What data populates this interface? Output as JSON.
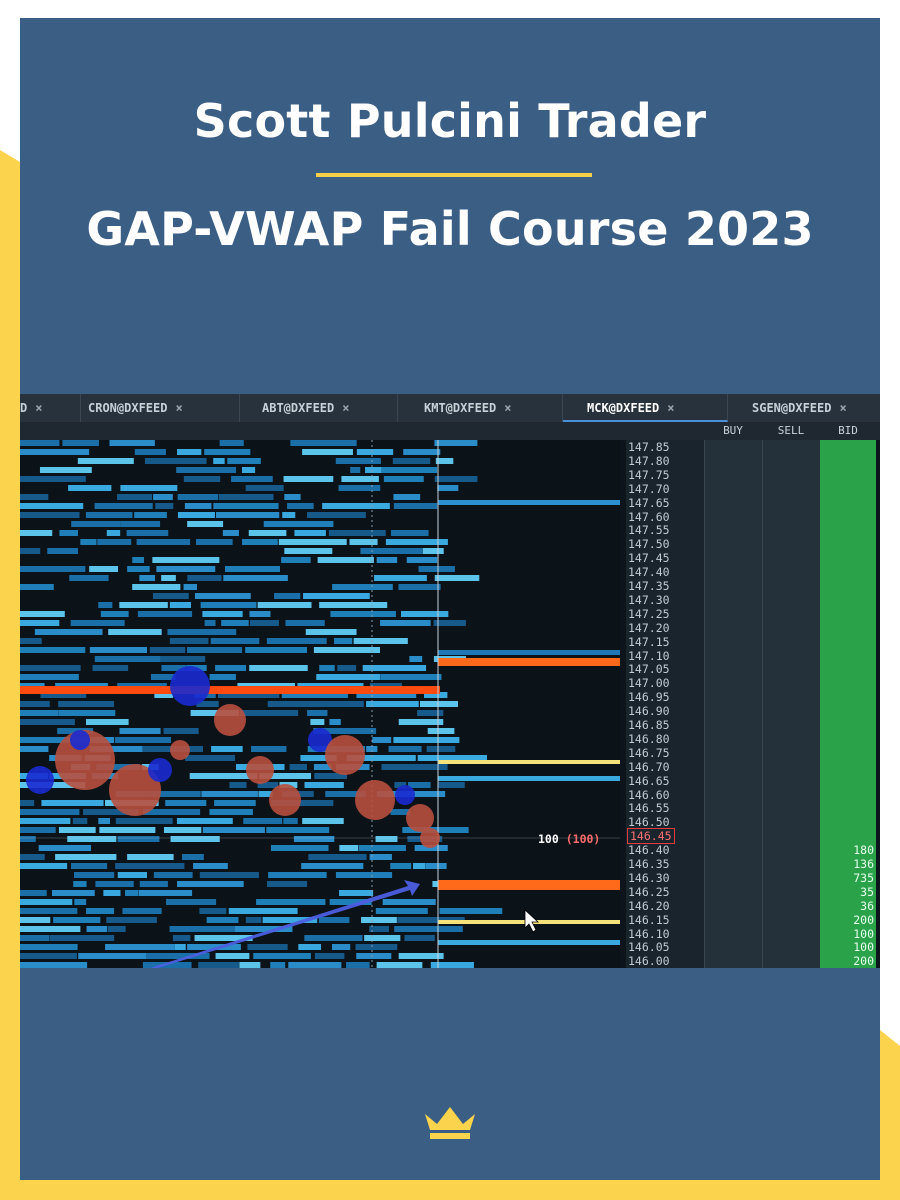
{
  "header": {
    "title": "Scott Pulcini Trader",
    "subtitle": "GAP-VWAP Fail Course 2023"
  },
  "colors": {
    "background": "#3b5f84",
    "accent": "#fbd34d",
    "bid_green": "#2aa24a"
  },
  "screenshot": {
    "tabs": [
      {
        "label": "D",
        "active": false
      },
      {
        "label": "CRON@DXFEED",
        "active": false
      },
      {
        "label": "ABT@DXFEED",
        "active": false
      },
      {
        "label": "KMT@DXFEED",
        "active": false
      },
      {
        "label": "MCK@DXFEED",
        "active": true
      },
      {
        "label": "SGEN@DXFEED",
        "active": false
      }
    ],
    "close_glyph": "×",
    "columns": [
      "BUY",
      "SELL",
      "BID"
    ],
    "prices": [
      "147.85",
      "147.80",
      "147.75",
      "147.70",
      "147.65",
      "147.60",
      "147.55",
      "147.50",
      "147.45",
      "147.40",
      "147.35",
      "147.30",
      "147.25",
      "147.20",
      "147.15",
      "147.10",
      "147.05",
      "147.00",
      "146.95",
      "146.90",
      "146.85",
      "146.80",
      "146.75",
      "146.70",
      "146.65",
      "146.60",
      "146.55",
      "146.50",
      "146.45",
      "146.40",
      "146.35",
      "146.30",
      "146.25",
      "146.20",
      "146.15",
      "146.10",
      "146.05",
      "146.00"
    ],
    "highlighted_price": "146.45",
    "order_label": "100",
    "order_label_paren": "(100)",
    "bid_sizes": [
      {
        "price": "146.40",
        "size": "180"
      },
      {
        "price": "146.35",
        "size": "136"
      },
      {
        "price": "146.30",
        "size": "735"
      },
      {
        "price": "146.25",
        "size": "35"
      },
      {
        "price": "146.20",
        "size": "36"
      },
      {
        "price": "146.15",
        "size": "200"
      },
      {
        "price": "146.10",
        "size": "100"
      },
      {
        "price": "146.05",
        "size": "100"
      },
      {
        "price": "146.00",
        "size": "200"
      }
    ]
  },
  "footer": {
    "logo_icon": "crown-icon"
  }
}
